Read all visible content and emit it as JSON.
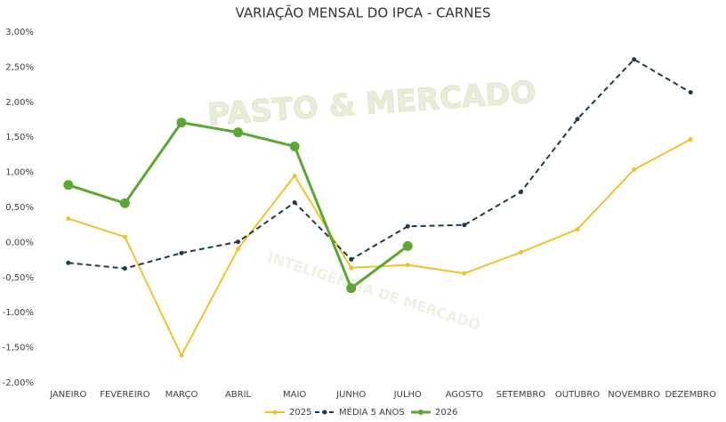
{
  "chart_data": {
    "type": "line",
    "title": "VARIAÇÃO MENSAL DO IPCA - CARNES",
    "categories": [
      "JANEIRO",
      "FEVEREIRO",
      "MARÇO",
      "ABRIL",
      "MAIO",
      "JUNHO",
      "JULHO",
      "AGOSTO",
      "SETEMBRO",
      "OUTUBRO",
      "NOVEMBRO",
      "DEZEMBRO"
    ],
    "series": [
      {
        "name": "2025",
        "color": "#f2c12e",
        "style": "solid",
        "values": [
          0.34,
          0.08,
          -1.61,
          -0.09,
          0.95,
          -0.36,
          -0.32,
          -0.44,
          -0.14,
          0.19,
          1.04,
          1.47
        ]
      },
      {
        "name": "MÉDIA 5 ANOS",
        "color": "#1b3a4b",
        "style": "dashed",
        "values": [
          -0.29,
          -0.37,
          -0.15,
          0.01,
          0.57,
          -0.24,
          0.23,
          0.25,
          0.72,
          1.76,
          2.61,
          2.14
        ]
      },
      {
        "name": "2026",
        "color": "#5aa832",
        "style": "bold",
        "values": [
          0.82,
          0.56,
          1.71,
          1.57,
          1.37,
          -0.65,
          -0.05,
          null,
          null,
          null,
          null,
          null
        ]
      }
    ],
    "ylim": [
      -2,
      3
    ],
    "yticks": [
      {
        "value": -2,
        "label": "-2,00%"
      },
      {
        "value": -1.5,
        "label": "-1,50%"
      },
      {
        "value": -1,
        "label": "-1,00%"
      },
      {
        "value": -0.5,
        "label": "-0,50%"
      },
      {
        "value": 0,
        "label": "0,00%"
      },
      {
        "value": 0.5,
        "label": "0,50%"
      },
      {
        "value": 1,
        "label": "1,00%"
      },
      {
        "value": 1.5,
        "label": "1,50%"
      },
      {
        "value": 2,
        "label": "2,00%"
      },
      {
        "value": 2.5,
        "label": "2,50%"
      },
      {
        "value": 3,
        "label": "3,00%"
      }
    ],
    "grid": false,
    "legend": "bottom"
  },
  "watermark": {
    "title": "PASTO & MERCADO",
    "subtitle": "INTELIGÊNCIA DE MERCADO"
  }
}
